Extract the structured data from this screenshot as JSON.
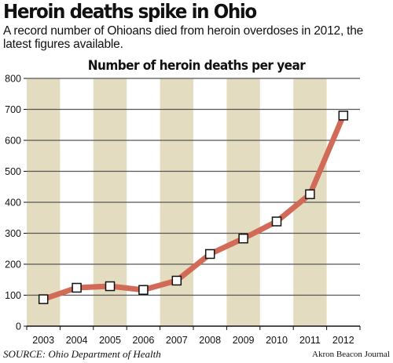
{
  "headline": "Heroin deaths spike in Ohio",
  "dek": "A record number of Ohioans died from heroin overdoses in 2012, the latest figures available.",
  "source": "SOURCE: Ohio Department of Health",
  "credit": "Akron Beacon Journal",
  "colors": {
    "band": "#e4dcc0",
    "line": "#d16a56",
    "marker_fill": "#ffffff",
    "marker_stroke": "#111111",
    "axis": "#111111",
    "gridline": "#555555"
  },
  "chart_data": {
    "type": "line",
    "title": "Number of heroin deaths per year",
    "xlabel": "",
    "ylabel": "",
    "categories": [
      "2003",
      "2004",
      "2005",
      "2006",
      "2007",
      "2008",
      "2009",
      "2010",
      "2011",
      "2012"
    ],
    "series": [
      {
        "values": [
          87,
          124,
          129,
          117,
          147,
          233,
          283,
          338,
          426,
          680
        ]
      }
    ],
    "ylim": [
      0,
      800
    ],
    "yticks": [
      0,
      100,
      200,
      300,
      400,
      500,
      600,
      700,
      800
    ],
    "grid": true,
    "shaded_columns": [
      "2003",
      "2005",
      "2007",
      "2009",
      "2011"
    ]
  }
}
